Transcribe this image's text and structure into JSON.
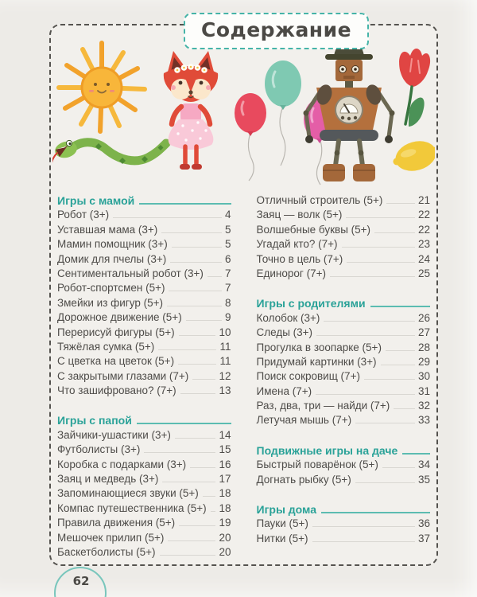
{
  "page": {
    "title": "Содержание",
    "page_number": "62"
  },
  "colors": {
    "teal_accent": "#2aa298",
    "text": "#4e4c49",
    "leader_line": "#d9d7d2",
    "frame_dash": "#55534f"
  },
  "illustrations": [
    "sun",
    "snake",
    "fox-girl",
    "balloons",
    "robot",
    "tulip",
    "lemon"
  ],
  "toc": {
    "columns": [
      {
        "blocks": [
          {
            "header": "Игры с мамой",
            "entries": [
              {
                "label": "Робот (3+)",
                "page": "4"
              },
              {
                "label": "Уставшая мама (3+)",
                "page": "5"
              },
              {
                "label": "Мамин помощник (3+)",
                "page": "5"
              },
              {
                "label": "Домик для пчелы (3+)",
                "page": "6"
              },
              {
                "label": "Сентиментальный робот (3+)",
                "page": "7"
              },
              {
                "label": "Робот-спортсмен (5+)",
                "page": "7"
              },
              {
                "label": "Змейки из фигур (5+)",
                "page": "8"
              },
              {
                "label": "Дорожное движение (5+)",
                "page": "9"
              },
              {
                "label": "Перерисуй фигуры (5+)",
                "page": "10"
              },
              {
                "label": "Тяжёлая сумка (5+)",
                "page": "11"
              },
              {
                "label": "С цветка на цветок (5+)",
                "page": "11"
              },
              {
                "label": "С закрытыми глазами (7+)",
                "page": "12"
              },
              {
                "label": "Что зашифровано? (7+)",
                "page": "13"
              }
            ]
          },
          {
            "header": "Игры с папой",
            "entries": [
              {
                "label": "Зайчики-ушастики (3+)",
                "page": "14"
              },
              {
                "label": "Футболисты (3+)",
                "page": "15"
              },
              {
                "label": "Коробка с подарками (3+)",
                "page": "16"
              },
              {
                "label": "Заяц и медведь (3+)",
                "page": "17"
              },
              {
                "label": "Запоминающиеся звуки (5+)",
                "page": "18"
              },
              {
                "label": "Компас путешественника (5+)",
                "page": "18"
              },
              {
                "label": "Правила движения (5+)",
                "page": "19"
              },
              {
                "label": "Мешочек прилип (5+)",
                "page": "20"
              },
              {
                "label": "Баскетболисты (5+)",
                "page": "20"
              }
            ]
          }
        ]
      },
      {
        "blocks": [
          {
            "header": null,
            "entries": [
              {
                "label": "Отличный строитель (5+)",
                "page": "21"
              },
              {
                "label": "Заяц — волк (5+)",
                "page": "22"
              },
              {
                "label": "Волшебные буквы (5+)",
                "page": "22"
              },
              {
                "label": "Угадай кто? (7+)",
                "page": "23"
              },
              {
                "label": "Точно в цель (7+)",
                "page": "24"
              },
              {
                "label": "Единорог (7+)",
                "page": "25"
              }
            ]
          },
          {
            "header": "Игры с родителями",
            "entries": [
              {
                "label": "Колобок (3+)",
                "page": "26"
              },
              {
                "label": "Следы (3+)",
                "page": "27"
              },
              {
                "label": "Прогулка в зоопарке (5+)",
                "page": "28"
              },
              {
                "label": "Придумай картинки (3+)",
                "page": "29"
              },
              {
                "label": "Поиск сокровищ (7+)",
                "page": "30"
              },
              {
                "label": "Имена (7+)",
                "page": "31"
              },
              {
                "label": "Раз, два, три — найди (7+)",
                "page": "32"
              },
              {
                "label": "Летучая мышь (7+)",
                "page": "33"
              }
            ]
          },
          {
            "header": "Подвижные игры на даче",
            "entries": [
              {
                "label": "Быстрый поварёнок (5+)",
                "page": "34"
              },
              {
                "label": "Догнать рыбку (5+)",
                "page": "35"
              }
            ]
          },
          {
            "header": "Игры дома",
            "entries": [
              {
                "label": "Пауки (5+)",
                "page": "36"
              },
              {
                "label": "Нитки (5+)",
                "page": "37"
              }
            ]
          }
        ]
      }
    ]
  }
}
